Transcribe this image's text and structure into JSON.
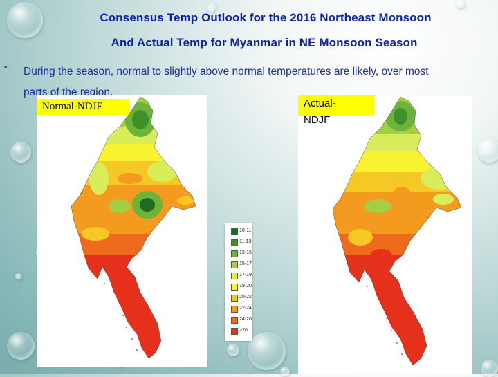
{
  "title_line1": "Consensus Temp Outlook for the 2016 Northeast Monsoon",
  "title_line2": "And Actual Temp for Myanmar in NE Monsoon Season",
  "bullet_symbol": "•",
  "bullet_text_line1": "During the season, normal to slightly above normal temperatures are  likely, over most",
  "bullet_text_line2": "parts of the region.",
  "map_left_label": "Normal-NDJF",
  "map_right_label_line1": "Actual-",
  "map_right_label_line2": "NDJF",
  "legend": [
    {
      "range": "10-11",
      "color": "#1f6b1f"
    },
    {
      "range": "11-13",
      "color": "#3f8f2a"
    },
    {
      "range": "13-15",
      "color": "#6db33a"
    },
    {
      "range": "15-17",
      "color": "#9fd046"
    },
    {
      "range": "17-19",
      "color": "#d9ec5a"
    },
    {
      "range": "19-20",
      "color": "#f7f32e"
    },
    {
      "range": "20-22",
      "color": "#f5c825"
    },
    {
      "range": "22-24",
      "color": "#f39a1f"
    },
    {
      "range": "24-26",
      "color": "#ee6a1c"
    },
    {
      "range": ">26",
      "color": "#e5311c"
    }
  ],
  "colors": {
    "title": "#0b1fb0",
    "body_text": "#1b2f95",
    "label_bg": "#ffff00"
  }
}
